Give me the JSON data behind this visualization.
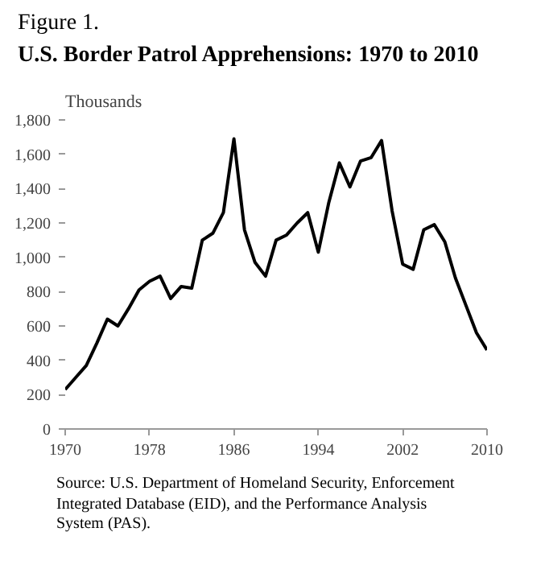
{
  "chart_data": {
    "type": "line",
    "title": "U.S. Border Patrol Apprehensions: 1970 to 2010",
    "subtitle": "Figure 1.",
    "ylabel": "Thousands",
    "annotations": [
      "Source: U.S. Department of Homeland Security, Enforcement Integrated Database (EID), and the Performance Analysis System (PAS)."
    ],
    "x": [
      1970,
      1971,
      1972,
      1973,
      1974,
      1975,
      1976,
      1977,
      1978,
      1979,
      1980,
      1981,
      1982,
      1983,
      1984,
      1985,
      1986,
      1987,
      1988,
      1989,
      1990,
      1991,
      1992,
      1993,
      1994,
      1995,
      1996,
      1997,
      1998,
      1999,
      2000,
      2001,
      2002,
      2003,
      2004,
      2005,
      2006,
      2007,
      2008,
      2009,
      2010
    ],
    "series": [
      {
        "color": "#000000",
        "values": [
          230,
          300,
          370,
          500,
          640,
          600,
          700,
          810,
          860,
          890,
          760,
          830,
          820,
          1100,
          1140,
          1260,
          1690,
          1160,
          970,
          890,
          1100,
          1130,
          1200,
          1260,
          1030,
          1320,
          1550,
          1410,
          1560,
          1580,
          1680,
          1270,
          960,
          930,
          1160,
          1190,
          1090,
          880,
          720,
          560,
          460
        ]
      }
    ],
    "xlim": [
      1970,
      2010
    ],
    "ylim": [
      0,
      1800
    ],
    "xticks": [
      1970,
      1978,
      1986,
      1994,
      2002,
      2010
    ],
    "yticks": [
      0,
      {
        "value": 200,
        "label": "200"
      },
      {
        "value": 400,
        "label": "400"
      },
      {
        "value": 600,
        "label": "600"
      },
      {
        "value": 800,
        "label": "800"
      },
      {
        "value": 1000,
        "label": "1,000"
      },
      {
        "value": 1200,
        "label": "1,200"
      },
      {
        "value": 1400,
        "label": "1,400"
      },
      {
        "value": 1600,
        "label": "1,600"
      },
      {
        "value": 1800,
        "label": "1,800"
      }
    ],
    "grid": false,
    "marker": "none",
    "line_style": "solid"
  }
}
